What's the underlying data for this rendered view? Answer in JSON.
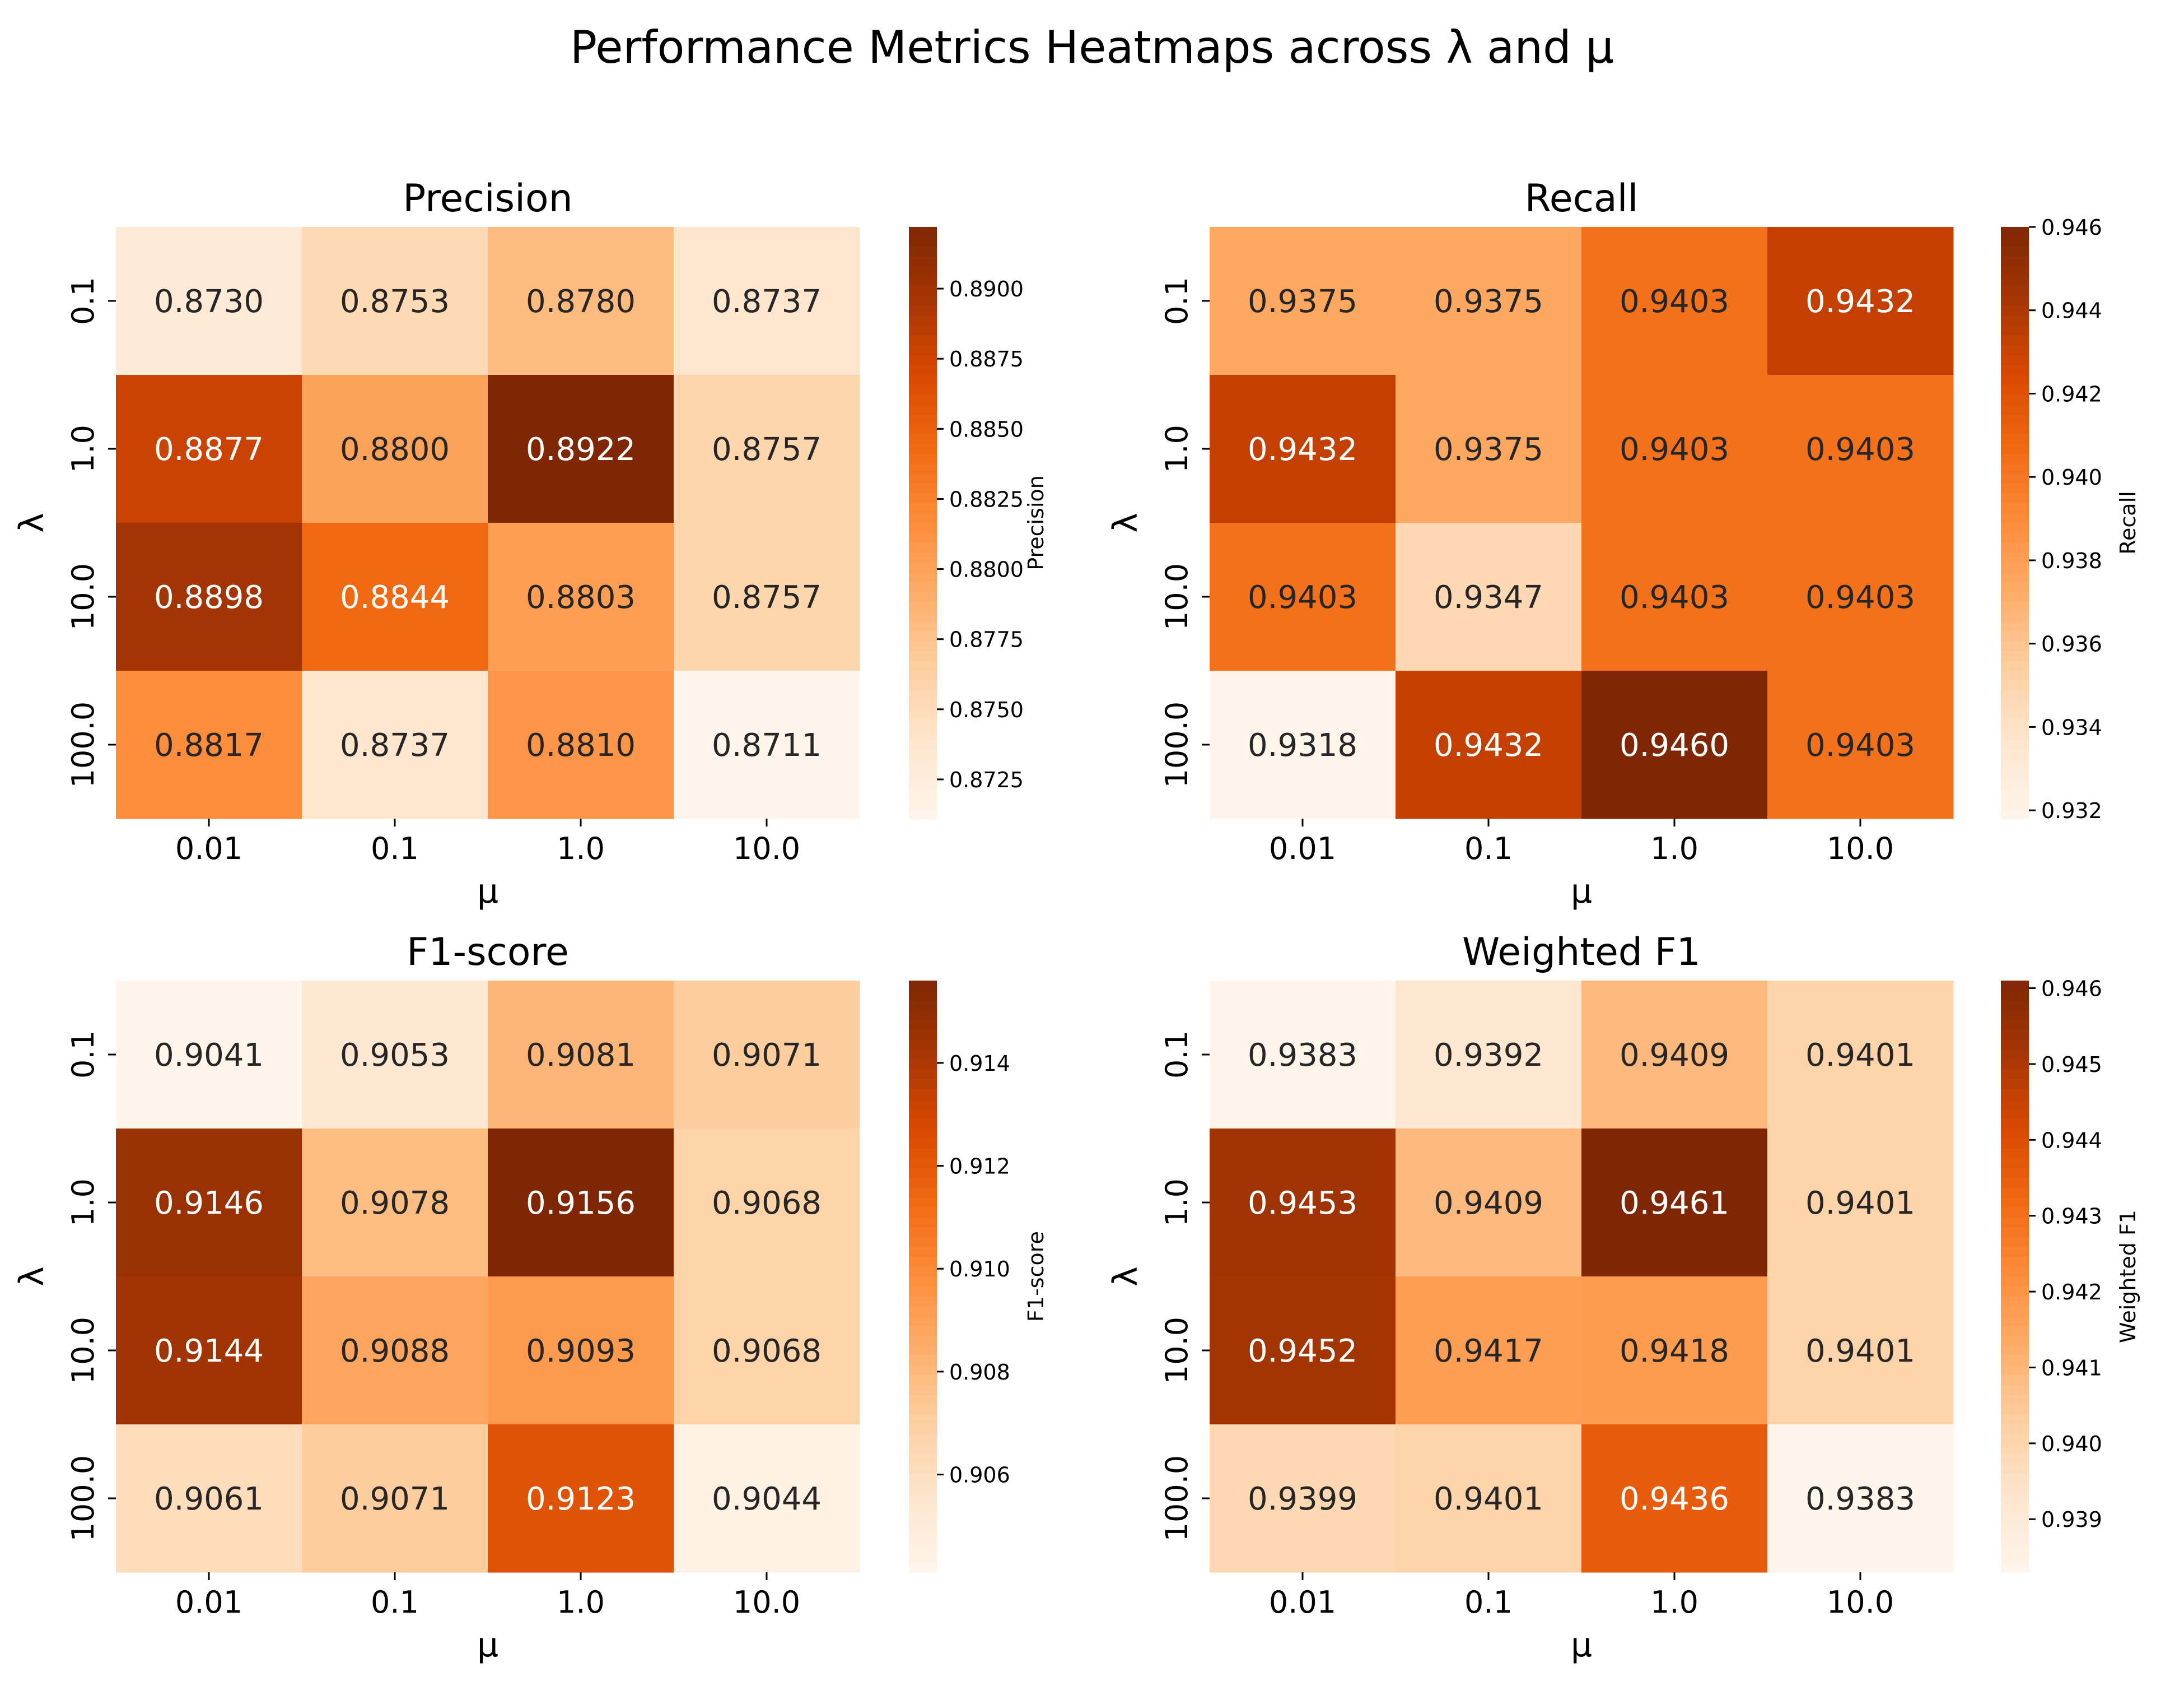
{
  "figure": {
    "suptitle": "Performance Metrics Heatmaps across λ and μ"
  },
  "colors": {
    "cmap": [
      "#fff5eb",
      "#fee6ce",
      "#fdd0a2",
      "#fdae6b",
      "#fd8d3c",
      "#f16913",
      "#d94801",
      "#a63603",
      "#7f2704"
    ],
    "text_dark": "#262626",
    "text_light": "#ffffff",
    "axis": "#000000",
    "background": "#ffffff"
  },
  "chart_data": [
    {
      "type": "heatmap",
      "title": "Precision",
      "xlabel": "μ",
      "ylabel": "λ",
      "x_categories": [
        "0.01",
        "0.1",
        "1.0",
        "10.0"
      ],
      "y_categories": [
        "0.1",
        "1.0",
        "10.0",
        "100.0"
      ],
      "values": [
        [
          0.873,
          0.8753,
          0.878,
          0.8737
        ],
        [
          0.8877,
          0.88,
          0.8922,
          0.8757
        ],
        [
          0.8898,
          0.8844,
          0.8803,
          0.8757
        ],
        [
          0.8817,
          0.8737,
          0.881,
          0.8711
        ]
      ],
      "colorbar": {
        "label": "Precision",
        "vmin": 0.8711,
        "vmax": 0.8922,
        "ticks": [
          0.8725,
          0.875,
          0.8775,
          0.88,
          0.8825,
          0.885,
          0.8875,
          0.89
        ],
        "tick_labels": [
          "0.8725",
          "0.8750",
          "0.8775",
          "0.8800",
          "0.8825",
          "0.8850",
          "0.8875",
          "0.8900"
        ]
      }
    },
    {
      "type": "heatmap",
      "title": "Recall",
      "xlabel": "μ",
      "ylabel": "λ",
      "x_categories": [
        "0.01",
        "0.1",
        "1.0",
        "10.0"
      ],
      "y_categories": [
        "0.1",
        "1.0",
        "10.0",
        "100.0"
      ],
      "values": [
        [
          0.9375,
          0.9375,
          0.9403,
          0.9432
        ],
        [
          0.9432,
          0.9375,
          0.9403,
          0.9403
        ],
        [
          0.9403,
          0.9347,
          0.9403,
          0.9403
        ],
        [
          0.9318,
          0.9432,
          0.946,
          0.9403
        ]
      ],
      "colorbar": {
        "label": "Recall",
        "vmin": 0.9318,
        "vmax": 0.946,
        "ticks": [
          0.932,
          0.934,
          0.936,
          0.938,
          0.94,
          0.942,
          0.944,
          0.946
        ],
        "tick_labels": [
          "0.932",
          "0.934",
          "0.936",
          "0.938",
          "0.940",
          "0.942",
          "0.944",
          "0.946"
        ]
      }
    },
    {
      "type": "heatmap",
      "title": "F1-score",
      "xlabel": "μ",
      "ylabel": "λ",
      "x_categories": [
        "0.01",
        "0.1",
        "1.0",
        "10.0"
      ],
      "y_categories": [
        "0.1",
        "1.0",
        "10.0",
        "100.0"
      ],
      "values": [
        [
          0.9041,
          0.9053,
          0.9081,
          0.9071
        ],
        [
          0.9146,
          0.9078,
          0.9156,
          0.9068
        ],
        [
          0.9144,
          0.9088,
          0.9093,
          0.9068
        ],
        [
          0.9061,
          0.9071,
          0.9123,
          0.9044
        ]
      ],
      "colorbar": {
        "label": "F1-score",
        "vmin": 0.9041,
        "vmax": 0.9156,
        "ticks": [
          0.906,
          0.908,
          0.91,
          0.912,
          0.914
        ],
        "tick_labels": [
          "0.906",
          "0.908",
          "0.910",
          "0.912",
          "0.914"
        ]
      }
    },
    {
      "type": "heatmap",
      "title": "Weighted F1",
      "xlabel": "μ",
      "ylabel": "λ",
      "x_categories": [
        "0.01",
        "0.1",
        "1.0",
        "10.0"
      ],
      "y_categories": [
        "0.1",
        "1.0",
        "10.0",
        "100.0"
      ],
      "values": [
        [
          0.9383,
          0.9392,
          0.9409,
          0.9401
        ],
        [
          0.9453,
          0.9409,
          0.9461,
          0.9401
        ],
        [
          0.9452,
          0.9417,
          0.9418,
          0.9401
        ],
        [
          0.9399,
          0.9401,
          0.9436,
          0.9383
        ]
      ],
      "colorbar": {
        "label": "Weighted F1",
        "vmin": 0.9383,
        "vmax": 0.9461,
        "ticks": [
          0.939,
          0.94,
          0.941,
          0.942,
          0.943,
          0.944,
          0.945,
          0.946
        ],
        "tick_labels": [
          "0.939",
          "0.940",
          "0.941",
          "0.942",
          "0.943",
          "0.944",
          "0.945",
          "0.946"
        ]
      }
    }
  ]
}
